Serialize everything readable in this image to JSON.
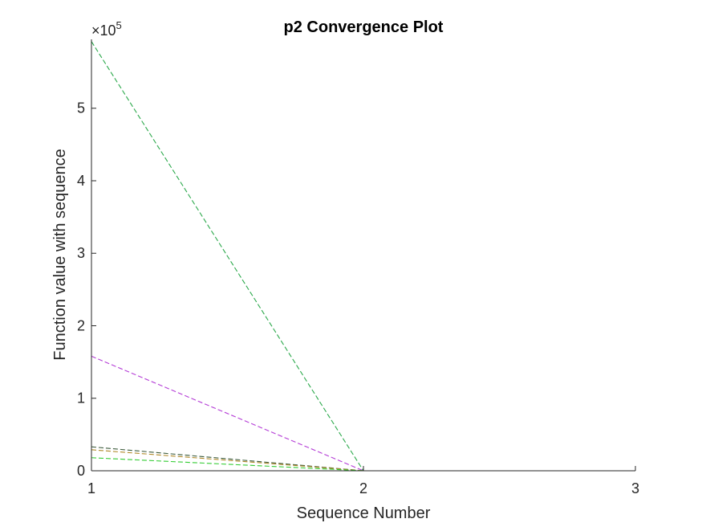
{
  "chart_data": {
    "type": "line",
    "title": "p2 Convergence Plot",
    "xlabel": "Sequence Number",
    "ylabel": "Function value with sequence",
    "xlim": [
      1,
      3
    ],
    "ylim": [
      0,
      595000
    ],
    "x_ticks": [
      1,
      2,
      3
    ],
    "x_tick_labels": [
      "1",
      "2",
      "3"
    ],
    "y_ticks": [
      0,
      100000,
      200000,
      300000,
      400000,
      500000
    ],
    "y_tick_labels": [
      "0",
      "1",
      "2",
      "3",
      "4",
      "5"
    ],
    "y_exponent_base": "×10",
    "y_exponent_power": "5",
    "grid": false,
    "line_style": "dashed",
    "series": [
      {
        "x": [
          1,
          2
        ],
        "values": [
          592000,
          0
        ],
        "color": "#2aa84a"
      },
      {
        "x": [
          1,
          2
        ],
        "values": [
          158000,
          0
        ],
        "color": "#b43cd6"
      },
      {
        "x": [
          1,
          2
        ],
        "values": [
          33000,
          0
        ],
        "color": "#3d5c3d"
      },
      {
        "x": [
          1,
          2
        ],
        "values": [
          29000,
          0
        ],
        "color": "#b08a2a"
      },
      {
        "x": [
          1,
          2
        ],
        "values": [
          18000,
          0
        ],
        "color": "#33cc33"
      }
    ]
  }
}
